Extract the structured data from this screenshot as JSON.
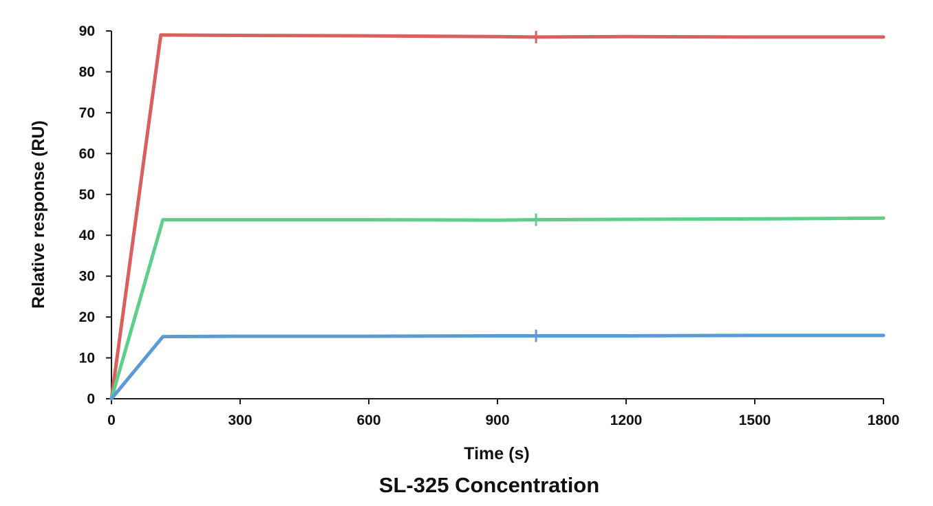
{
  "caption": "SL-325 Concentration",
  "chart_data": {
    "type": "line",
    "title": "",
    "xlabel": "Time (s)",
    "ylabel": "Relative response (RU)",
    "xlim": [
      0,
      1800
    ],
    "ylim": [
      0,
      90
    ],
    "xticks": [
      0,
      300,
      600,
      900,
      1200,
      1500,
      1800
    ],
    "yticks": [
      0,
      10,
      20,
      30,
      40,
      50,
      60,
      70,
      80,
      90
    ],
    "grid": false,
    "legend": "none",
    "series": [
      {
        "color": "#d9605f",
        "points": [
          [
            0,
            0
          ],
          [
            115,
            89
          ],
          [
            300,
            88.9
          ],
          [
            600,
            88.8
          ],
          [
            900,
            88.6
          ],
          [
            990,
            88.5
          ],
          [
            1200,
            88.6
          ],
          [
            1500,
            88.5
          ],
          [
            1800,
            88.5
          ]
        ]
      },
      {
        "color": "#5ecf8a",
        "points": [
          [
            0,
            0
          ],
          [
            120,
            43.8
          ],
          [
            300,
            43.8
          ],
          [
            600,
            43.8
          ],
          [
            900,
            43.7
          ],
          [
            990,
            43.8
          ],
          [
            1200,
            43.9
          ],
          [
            1500,
            44.0
          ],
          [
            1800,
            44.2
          ]
        ]
      },
      {
        "color": "#5b9bd5",
        "points": [
          [
            0,
            0
          ],
          [
            120,
            15.2
          ],
          [
            300,
            15.3
          ],
          [
            600,
            15.3
          ],
          [
            900,
            15.4
          ],
          [
            990,
            15.4
          ],
          [
            1200,
            15.4
          ],
          [
            1500,
            15.5
          ],
          [
            1800,
            15.5
          ]
        ]
      }
    ]
  }
}
